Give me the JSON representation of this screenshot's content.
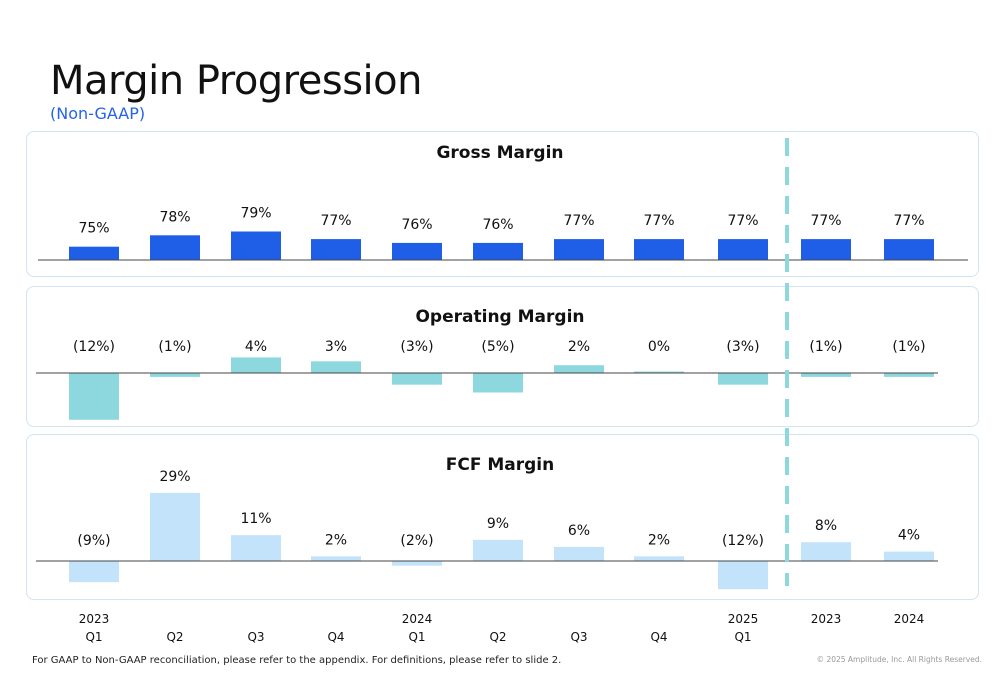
{
  "page": {
    "title": "Margin Progression",
    "subtitle": "(Non-GAAP)",
    "footnote": "For GAAP to Non-GAAP reconciliation, please refer to the appendix. For definitions, please refer to slide 2.",
    "copyright": "© 2025 Amplitude, Inc. All Rights Reserved."
  },
  "chart_data": {
    "type": "bar",
    "categories": [
      {
        "top": "2023",
        "bottom": "Q1"
      },
      {
        "top": "",
        "bottom": "Q2"
      },
      {
        "top": "",
        "bottom": "Q3"
      },
      {
        "top": "",
        "bottom": "Q4"
      },
      {
        "top": "2024",
        "bottom": "Q1"
      },
      {
        "top": "",
        "bottom": "Q2"
      },
      {
        "top": "",
        "bottom": "Q3"
      },
      {
        "top": "",
        "bottom": "Q4"
      },
      {
        "top": "2025",
        "bottom": "Q1"
      },
      {
        "top": "2023",
        "bottom": ""
      },
      {
        "top": "2024",
        "bottom": ""
      }
    ],
    "series": [
      {
        "name": "Gross Margin",
        "color": "#1f5fe8",
        "values": [
          75,
          78,
          79,
          77,
          76,
          76,
          77,
          77,
          77,
          77,
          77
        ],
        "labels": [
          "75%",
          "78%",
          "79%",
          "77%",
          "76%",
          "76%",
          "77%",
          "77%",
          "77%",
          "77%",
          "77%"
        ]
      },
      {
        "name": "Operating Margin",
        "color": "#8dd8df",
        "values": [
          -12,
          -1,
          4,
          3,
          -3,
          -5,
          2,
          0,
          -3,
          -1,
          -1
        ],
        "labels": [
          "(12%)",
          "(1%)",
          "4%",
          "3%",
          "(3%)",
          "(5%)",
          "2%",
          "0%",
          "(3%)",
          "(1%)",
          "(1%)"
        ]
      },
      {
        "name": "FCF Margin",
        "color": "#c3e3fb",
        "values": [
          -9,
          29,
          11,
          2,
          -2,
          9,
          6,
          2,
          -12,
          8,
          4
        ],
        "labels": [
          "(9%)",
          "29%",
          "11%",
          "2%",
          "(2%)",
          "9%",
          "6%",
          "2%",
          "(12%)",
          "8%",
          "4%"
        ]
      }
    ],
    "divider": {
      "after_index": 8,
      "color": "#8dd8df",
      "style": "dashed"
    },
    "legend": "none",
    "grid": false
  }
}
